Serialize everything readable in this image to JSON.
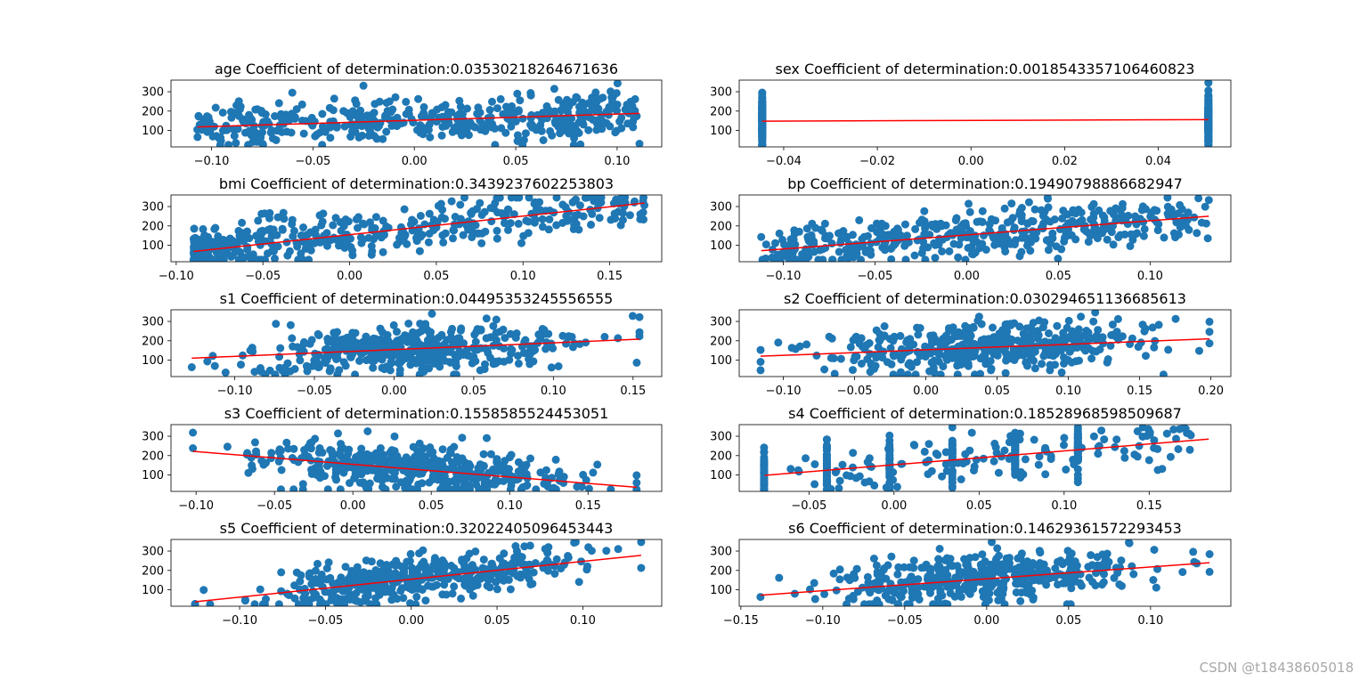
{
  "watermark": "CSDN @t18438605018",
  "colors": {
    "points": "#1f77b4",
    "line": "#ff0000",
    "axes": "#000000"
  },
  "chart_data": [
    {
      "type": "scatter",
      "feature": "age",
      "title": "age Coefficient of determination:0.03530218264671636",
      "xlim": [
        -0.12,
        0.122
      ],
      "ylim": [
        15,
        360
      ],
      "xticks": [
        -0.1,
        -0.05,
        0.0,
        0.05,
        0.1
      ],
      "xtick_labels": [
        "−0.10",
        "−0.05",
        "0.00",
        "0.05",
        "0.10"
      ],
      "yticks": [
        100,
        200,
        300
      ],
      "ytick_labels": [
        "100",
        "200",
        "300"
      ],
      "x_range": [
        -0.107,
        0.111
      ],
      "n_points": 442,
      "fit_line": {
        "x": [
          -0.107,
          0.111
        ],
        "y": [
          118,
          188
        ]
      },
      "distribution": "uniform"
    },
    {
      "type": "scatter",
      "feature": "sex",
      "title": "sex Coefficient of determination:0.001854335710646082​3",
      "xlim": [
        -0.0495,
        0.0555
      ],
      "ylim": [
        15,
        360
      ],
      "xticks": [
        -0.04,
        -0.02,
        0.0,
        0.02,
        0.04
      ],
      "xtick_labels": [
        "−0.04",
        "−0.02",
        "0.00",
        "0.02",
        "0.04"
      ],
      "yticks": [
        100,
        200,
        300
      ],
      "ytick_labels": [
        "100",
        "200",
        "300"
      ],
      "x_values": [
        -0.0446,
        0.0507
      ],
      "n_points": 442,
      "fit_line": {
        "x": [
          -0.0446,
          0.0507
        ],
        "y": [
          148,
          156
        ]
      },
      "distribution": "binary"
    },
    {
      "type": "scatter",
      "feature": "bmi",
      "title": "bmi Coefficient of determination:0.3439237602253803",
      "xlim": [
        -0.103,
        0.18
      ],
      "ylim": [
        15,
        360
      ],
      "xticks": [
        -0.1,
        -0.05,
        0.0,
        0.05,
        0.1,
        0.15
      ],
      "xtick_labels": [
        "−0.10",
        "−0.05",
        "0.00",
        "0.05",
        "0.10",
        "0.15"
      ],
      "yticks": [
        100,
        200,
        300
      ],
      "ytick_labels": [
        "100",
        "200",
        "300"
      ],
      "x_range": [
        -0.09,
        0.17
      ],
      "n_points": 442,
      "fit_line": {
        "x": [
          -0.09,
          0.17
        ],
        "y": [
          68,
          318
        ]
      },
      "distribution": "skewed"
    },
    {
      "type": "scatter",
      "feature": "bp",
      "title": "bp Coefficient of determination:0.19490798886682947",
      "xlim": [
        -0.124,
        0.144
      ],
      "ylim": [
        15,
        360
      ],
      "xticks": [
        -0.1,
        -0.05,
        0.0,
        0.05,
        0.1
      ],
      "xtick_labels": [
        "−0.10",
        "−0.05",
        "0.00",
        "0.05",
        "0.10"
      ],
      "yticks": [
        100,
        200,
        300
      ],
      "ytick_labels": [
        "100",
        "200",
        "300"
      ],
      "x_range": [
        -0.112,
        0.132
      ],
      "n_points": 442,
      "fit_line": {
        "x": [
          -0.112,
          0.132
        ],
        "y": [
          72,
          250
        ]
      },
      "distribution": "uniform"
    },
    {
      "type": "scatter",
      "feature": "s1",
      "title": "s1 Coefficient of determination:0.04495353245556555",
      "xlim": [
        -0.14,
        0.168
      ],
      "ylim": [
        15,
        360
      ],
      "xticks": [
        -0.1,
        -0.05,
        0.0,
        0.05,
        0.1,
        0.15
      ],
      "xtick_labels": [
        "−0.10",
        "−0.05",
        "0.00",
        "0.05",
        "0.10",
        "0.15"
      ],
      "yticks": [
        100,
        200,
        300
      ],
      "ytick_labels": [
        "100",
        "200",
        "300"
      ],
      "x_range": [
        -0.127,
        0.154
      ],
      "n_points": 442,
      "fit_line": {
        "x": [
          -0.127,
          0.154
        ],
        "y": [
          110,
          208
        ]
      },
      "distribution": "normal"
    },
    {
      "type": "scatter",
      "feature": "s2",
      "title": "s2 Coefficient of determination:0.030294651136685613",
      "xlim": [
        -0.131,
        0.214
      ],
      "ylim": [
        15,
        360
      ],
      "xticks": [
        -0.1,
        -0.05,
        0.0,
        0.05,
        0.1,
        0.15,
        0.2
      ],
      "xtick_labels": [
        "−0.10",
        "−0.05",
        "0.00",
        "0.05",
        "0.10",
        "0.15",
        "0.20"
      ],
      "yticks": [
        100,
        200,
        300
      ],
      "ytick_labels": [
        "100",
        "200",
        "300"
      ],
      "x_range": [
        -0.116,
        0.199
      ],
      "n_points": 442,
      "fit_line": {
        "x": [
          -0.116,
          0.199
        ],
        "y": [
          120,
          210
        ]
      },
      "distribution": "normal"
    },
    {
      "type": "scatter",
      "feature": "s3",
      "title": "s3 Coefficient of determination:0.1558585524453051",
      "xlim": [
        -0.116,
        0.197
      ],
      "ylim": [
        15,
        360
      ],
      "xticks": [
        -0.1,
        -0.05,
        0.0,
        0.05,
        0.1,
        0.15
      ],
      "xtick_labels": [
        "−0.10",
        "−0.05",
        "0.00",
        "0.05",
        "0.10",
        "0.15"
      ],
      "yticks": [
        100,
        200,
        300
      ],
      "ytick_labels": [
        "100",
        "200",
        "300"
      ],
      "x_range": [
        -0.102,
        0.181
      ],
      "n_points": 442,
      "fit_line": {
        "x": [
          -0.102,
          0.181
        ],
        "y": [
          222,
          36
        ]
      },
      "distribution": "normal"
    },
    {
      "type": "scatter",
      "feature": "s4",
      "title": "s4 Coefficient of determination:0.18528968598509687",
      "xlim": [
        -0.091,
        0.198
      ],
      "ylim": [
        15,
        360
      ],
      "xticks": [
        -0.05,
        0.0,
        0.05,
        0.1,
        0.15
      ],
      "xtick_labels": [
        "−0.05",
        "0.00",
        "0.05",
        "0.10",
        "0.15"
      ],
      "yticks": [
        100,
        200,
        300
      ],
      "ytick_labels": [
        "100",
        "200",
        "300"
      ],
      "x_values": [
        -0.0764,
        -0.0395,
        -0.0026,
        0.0343,
        0.0712,
        0.1081
      ],
      "n_points": 442,
      "fit_line": {
        "x": [
          -0.076,
          0.185
        ],
        "y": [
          98,
          285
        ]
      },
      "distribution": "discrete"
    },
    {
      "type": "scatter",
      "feature": "s5",
      "title": "s5 Coefficient of determination:0.32022405096453443",
      "xlim": [
        -0.14,
        0.146
      ],
      "ylim": [
        15,
        360
      ],
      "xticks": [
        -0.1,
        -0.05,
        0.0,
        0.05,
        0.1
      ],
      "xtick_labels": [
        "−0.10",
        "−0.05",
        "0.00",
        "0.05",
        "0.10"
      ],
      "yticks": [
        100,
        200,
        300
      ],
      "ytick_labels": [
        "100",
        "200",
        "300"
      ],
      "x_range": [
        -0.126,
        0.134
      ],
      "n_points": 442,
      "fit_line": {
        "x": [
          -0.126,
          0.134
        ],
        "y": [
          38,
          278
        ]
      },
      "distribution": "normal"
    },
    {
      "type": "scatter",
      "feature": "s6",
      "title": "s6 Coefficient of determination:0.14629361572293453",
      "xlim": [
        -0.151,
        0.149
      ],
      "ylim": [
        15,
        360
      ],
      "xticks": [
        -0.15,
        -0.1,
        -0.05,
        0.0,
        0.05,
        0.1
      ],
      "xtick_labels": [
        "−0.15",
        "−0.10",
        "−0.05",
        "0.00",
        "0.05",
        "0.10"
      ],
      "yticks": [
        100,
        200,
        300
      ],
      "ytick_labels": [
        "100",
        "200",
        "300"
      ],
      "x_range": [
        -0.138,
        0.136
      ],
      "n_points": 442,
      "fit_line": {
        "x": [
          -0.138,
          0.136
        ],
        "y": [
          72,
          240
        ]
      },
      "distribution": "normal"
    }
  ]
}
